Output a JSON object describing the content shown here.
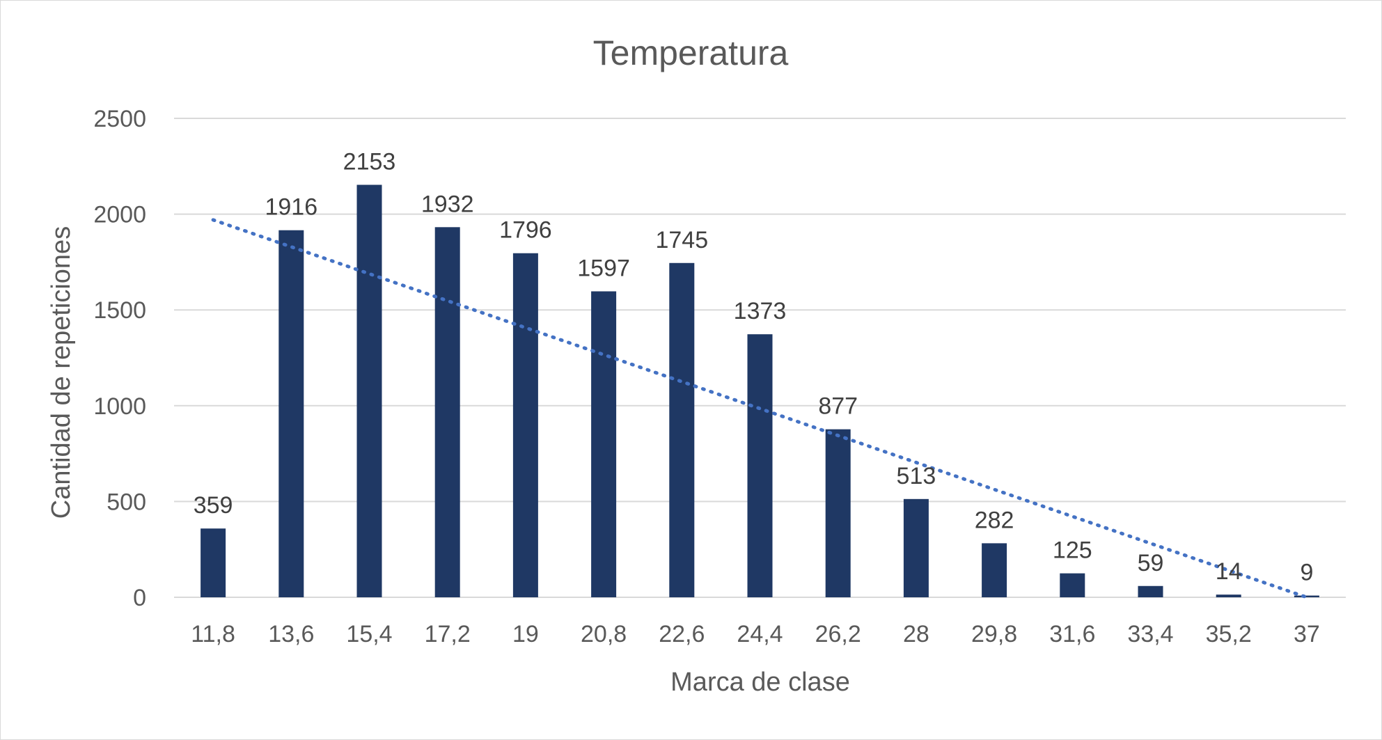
{
  "chart_data": {
    "type": "bar",
    "title": "Temperatura",
    "xlabel": "Marca de clase",
    "ylabel": "Cantidad de repeticiones",
    "categories": [
      "11,8",
      "13,6",
      "15,4",
      "17,2",
      "19",
      "20,8",
      "22,6",
      "24,4",
      "26,2",
      "28",
      "29,8",
      "31,6",
      "33,4",
      "35,2",
      "37"
    ],
    "values": [
      359,
      1916,
      2153,
      1932,
      1796,
      1597,
      1745,
      1373,
      877,
      513,
      282,
      125,
      59,
      14,
      9
    ],
    "data_labels": [
      "359",
      "1916",
      "2153",
      "1932",
      "1796",
      "1597",
      "1745",
      "1373",
      "877",
      "513",
      "282",
      "125",
      "59",
      "14",
      "9"
    ],
    "ylim": [
      0,
      2500
    ],
    "yticks": [
      "0",
      "500",
      "1000",
      "1500",
      "2000",
      "2500"
    ],
    "trendline": {
      "type": "linear",
      "start_value": 1970,
      "end_value": 0
    },
    "grid": true,
    "legend": "none",
    "colors": {
      "bar": "#1f3864",
      "trendline": "#4472c4",
      "grid": "#d9d9d9"
    }
  }
}
